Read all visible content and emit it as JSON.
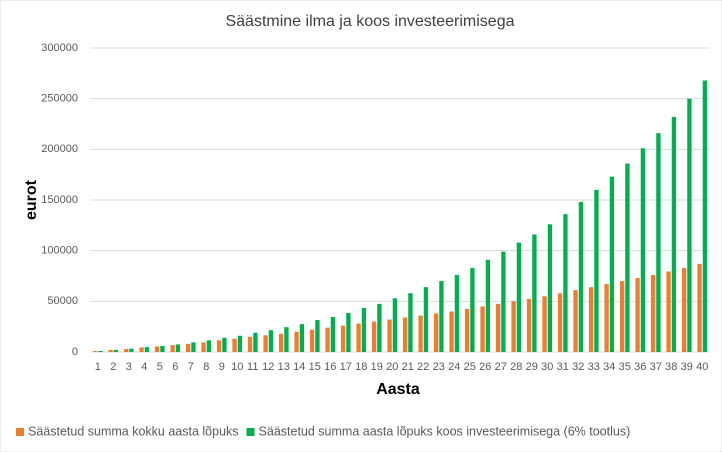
{
  "chart_data": {
    "type": "bar",
    "title": "Säästmine ilma ja koos investeerimisega",
    "x_label": "Aasta",
    "y_label": "eurot",
    "categories": [
      "1",
      "2",
      "3",
      "4",
      "5",
      "6",
      "7",
      "8",
      "9",
      "10",
      "11",
      "12",
      "13",
      "14",
      "15",
      "16",
      "17",
      "18",
      "19",
      "20",
      "21",
      "22",
      "23",
      "24",
      "25",
      "26",
      "27",
      "28",
      "29",
      "30",
      "31",
      "32",
      "33",
      "34",
      "35",
      "36",
      "37",
      "38",
      "39",
      "40"
    ],
    "series": [
      {
        "name": "Säästetud summa kokku aasta lõpuks",
        "color": "#ed7d31",
        "values": [
          1000,
          2000,
          3000,
          4500,
          5500,
          6800,
          8000,
          9500,
          11500,
          13000,
          15000,
          16500,
          18000,
          20000,
          22000,
          24000,
          26000,
          28000,
          30000,
          32000,
          34000,
          36000,
          38000,
          40000,
          42500,
          45000,
          47500,
          50000,
          52500,
          55000,
          58000,
          61000,
          64000,
          67000,
          70000,
          73000,
          76000,
          79500,
          83000,
          87000
        ]
      },
      {
        "name": "Säästetud summa aasta lõpuks koos investeerimisega (6% tootlus)",
        "color": "#00b050",
        "values": [
          1000,
          2000,
          3200,
          4800,
          6000,
          7500,
          9500,
          11500,
          14000,
          16000,
          19000,
          21500,
          24500,
          27500,
          31500,
          34500,
          38500,
          43500,
          47500,
          53000,
          58000,
          64000,
          70000,
          76000,
          83000,
          91000,
          99000,
          108000,
          116000,
          126000,
          136000,
          148000,
          160000,
          173000,
          186000,
          201000,
          216000,
          232000,
          250000,
          268000
        ]
      }
    ],
    "ylim": [
      0,
      300000
    ],
    "yticks": [
      0,
      50000,
      100000,
      150000,
      200000,
      250000,
      300000
    ],
    "grid": true,
    "legend": "bottom"
  }
}
